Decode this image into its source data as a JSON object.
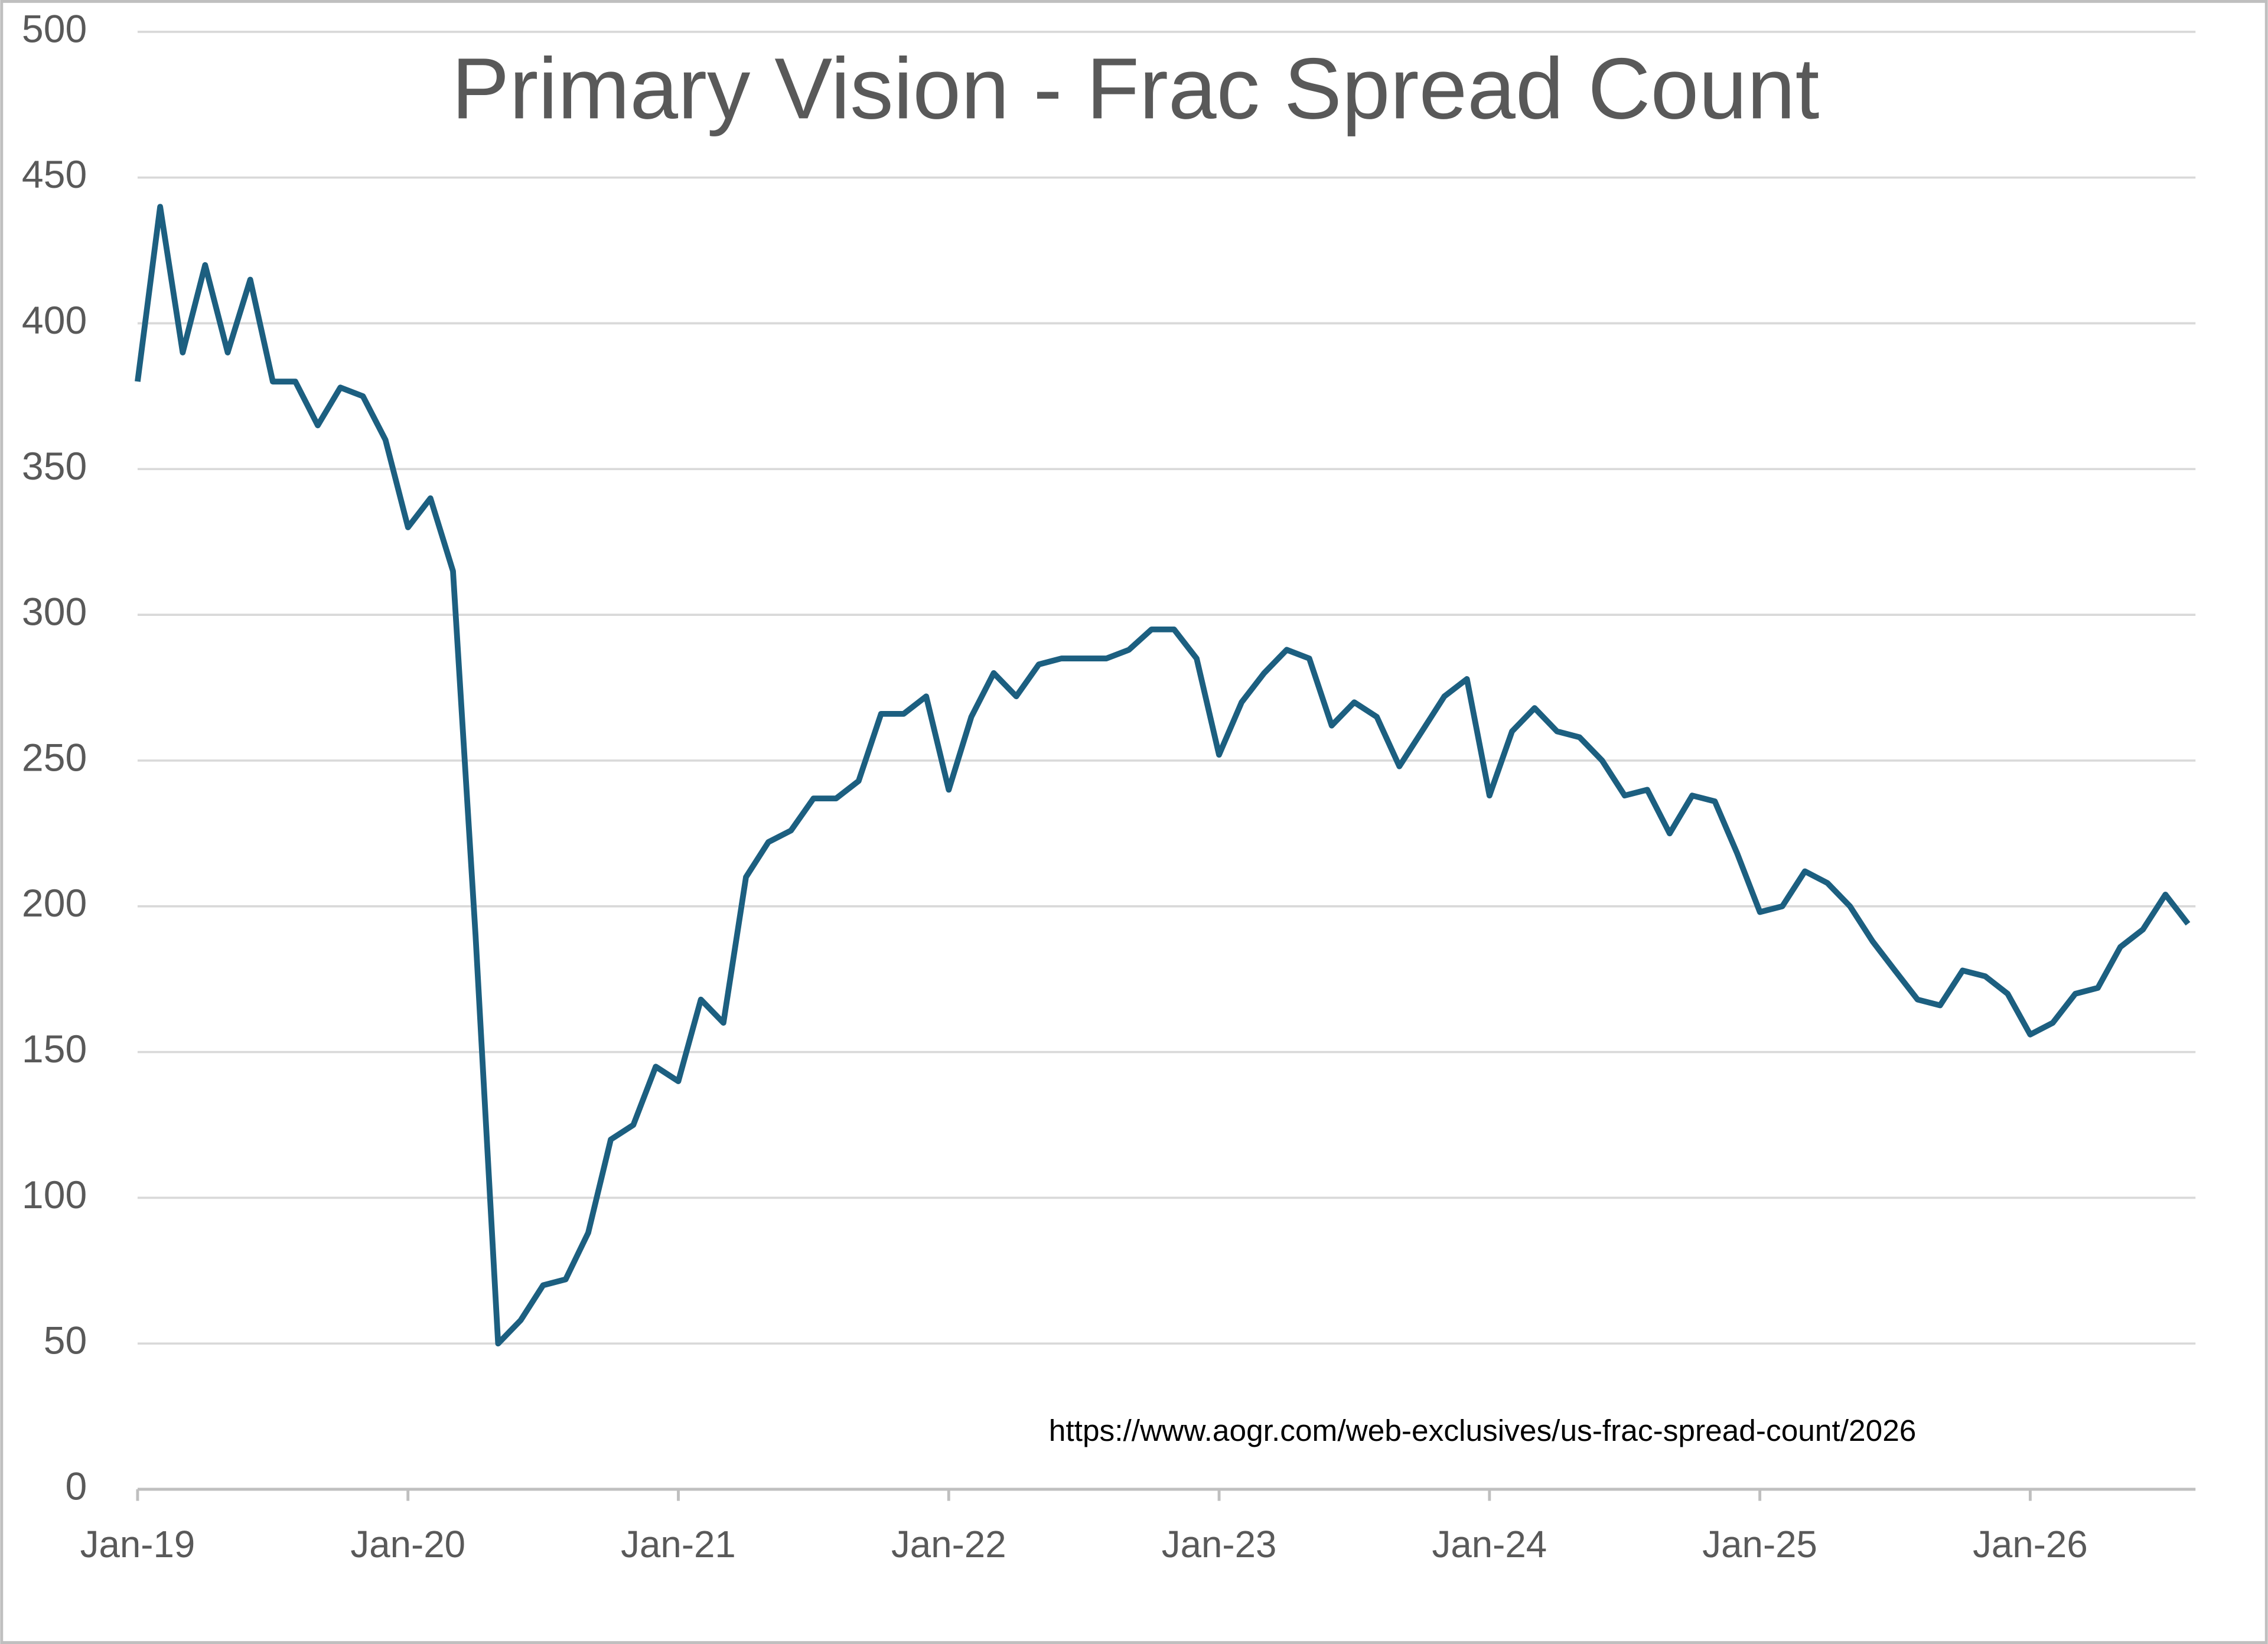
{
  "chart_data": {
    "type": "line",
    "title": "Primary Vision - Frac Spread Count",
    "annotation": "https://www.aogr.com/web-exclusives/us-frac-spread-count/2026",
    "categories": [
      "Jan-19",
      null,
      null,
      null,
      null,
      null,
      null,
      null,
      null,
      null,
      null,
      null,
      "Jan-20",
      null,
      null,
      null,
      null,
      null,
      null,
      null,
      null,
      null,
      null,
      null,
      "Jan-21",
      null,
      null,
      null,
      null,
      null,
      null,
      null,
      null,
      null,
      null,
      null,
      "Jan-22",
      null,
      null,
      null,
      null,
      null,
      null,
      null,
      null,
      null,
      null,
      null,
      "Jan-23",
      null,
      null,
      null,
      null,
      null,
      null,
      null,
      null,
      null,
      null,
      null,
      "Jan-24",
      null,
      null,
      null,
      null,
      null,
      null,
      null,
      null,
      null,
      null,
      null,
      "Jan-25",
      null,
      null,
      null,
      null,
      null,
      null,
      null,
      null,
      null,
      null,
      null,
      "Jan-26",
      null,
      null,
      null,
      null,
      null,
      null,
      null
    ],
    "values": [
      380,
      440,
      390,
      420,
      390,
      415,
      380,
      380,
      365,
      378,
      375,
      360,
      330,
      340,
      315,
      190,
      50,
      58,
      70,
      72,
      88,
      120,
      125,
      145,
      140,
      168,
      160,
      210,
      222,
      226,
      237,
      237,
      243,
      266,
      266,
      272,
      240,
      265,
      280,
      272,
      283,
      285,
      285,
      285,
      288,
      295,
      295,
      285,
      252,
      270,
      280,
      288,
      285,
      262,
      270,
      265,
      248,
      260,
      272,
      278,
      238,
      260,
      268,
      260,
      258,
      250,
      238,
      240,
      225,
      238,
      236,
      218,
      198,
      200,
      212,
      208,
      200,
      188,
      178,
      168,
      166,
      178,
      176,
      170,
      156,
      160,
      170,
      172,
      186,
      192,
      204,
      194
    ],
    "color": "#1c5f80",
    "ylim": [
      0,
      500
    ],
    "yticks": [
      0,
      50,
      100,
      150,
      200,
      250,
      300,
      350,
      400,
      450,
      500
    ],
    "grid": true
  }
}
